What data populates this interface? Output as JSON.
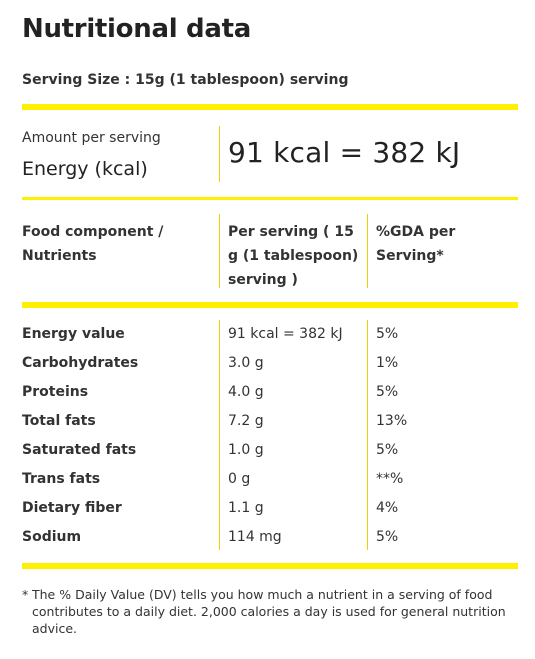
{
  "title": "Nutritional data",
  "serving_size": "Serving Size : 15g (1 tablespoon) serving",
  "energy": {
    "amount_label": "Amount per serving",
    "label": "Energy (kcal)",
    "value": "91 kcal = 382 kJ"
  },
  "table": {
    "headers": [
      "Food component / Nutrients",
      "Per serving ( 15 g (1 tablespoon) serving )",
      "%GDA per Serving*"
    ],
    "rows": [
      [
        "Energy value",
        "91 kcal = 382 kJ",
        "5%"
      ],
      [
        "Carbohydrates",
        "3.0 g",
        "1%"
      ],
      [
        "Proteins",
        "4.0 g",
        "5%"
      ],
      [
        "Total fats",
        "7.2 g",
        "13%"
      ],
      [
        "Saturated fats",
        "1.0 g",
        "5%"
      ],
      [
        "Trans fats",
        "0 g",
        "**%"
      ],
      [
        "Dietary fiber",
        "1.1 g",
        "4%"
      ],
      [
        "Sodium",
        "114 mg",
        "5%"
      ]
    ]
  },
  "footnote": {
    "marker": "*",
    "text": "The % Daily Value (DV) tells you how much a nutrient in a serving of food contributes to a daily diet. 2,000 calories a day is used for general nutrition advice."
  },
  "colors": {
    "accent": "#ffef00",
    "text": "#333333"
  }
}
